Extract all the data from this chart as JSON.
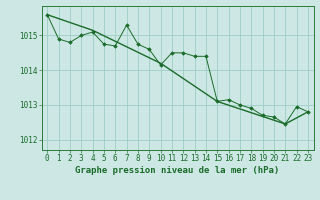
{
  "background_color": "#cde8e4",
  "grid_color": "#9ecdc7",
  "line_color": "#1a6b2a",
  "marker_color": "#1a6b2a",
  "title": "Graphe pression niveau de la mer (hPa)",
  "xlim": [
    -0.5,
    23.5
  ],
  "ylim": [
    1011.7,
    1015.85
  ],
  "yticks": [
    1012,
    1013,
    1014,
    1015
  ],
  "xticks": [
    0,
    1,
    2,
    3,
    4,
    5,
    6,
    7,
    8,
    9,
    10,
    11,
    12,
    13,
    14,
    15,
    16,
    17,
    18,
    19,
    20,
    21,
    22,
    23
  ],
  "xtick_labels": [
    "0",
    "1",
    "2",
    "3",
    "4",
    "5",
    "6",
    "7",
    "8",
    "9",
    "10",
    "11",
    "12",
    "13",
    "14",
    "15",
    "16",
    "17",
    "18",
    "19",
    "20",
    "21",
    "22",
    "23"
  ],
  "series1_x": [
    0,
    1,
    2,
    3,
    4,
    5,
    6,
    7,
    8,
    9,
    10,
    11,
    12,
    13,
    14,
    15,
    16,
    17,
    18,
    19,
    20,
    21,
    22,
    23
  ],
  "series1_y": [
    1015.6,
    1014.9,
    1014.8,
    1015.0,
    1015.1,
    1014.75,
    1014.7,
    1015.3,
    1014.75,
    1014.6,
    1014.15,
    1014.5,
    1014.5,
    1014.4,
    1014.4,
    1013.1,
    1013.15,
    1013.0,
    1012.9,
    1012.7,
    1012.65,
    1012.45,
    1012.95,
    1012.8
  ],
  "series2_x": [
    0,
    4,
    10,
    15,
    21,
    23
  ],
  "series2_y": [
    1015.6,
    1015.15,
    1014.2,
    1013.1,
    1012.45,
    1012.8
  ],
  "tick_fontsize": 5.5,
  "title_fontsize": 6.5,
  "title_color": "#1a6b2a",
  "tick_color": "#1a6b2a",
  "spine_color": "#2a7a3a"
}
